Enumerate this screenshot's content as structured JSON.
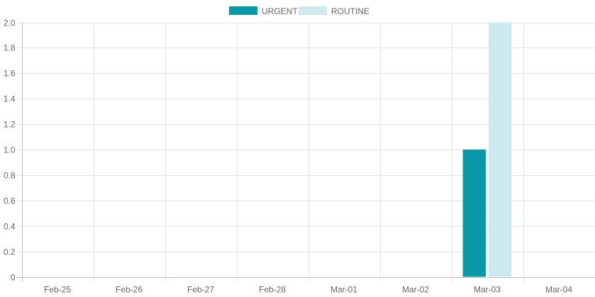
{
  "chart_data": {
    "type": "bar",
    "categories": [
      "Feb-25",
      "Feb-26",
      "Feb-27",
      "Feb-28",
      "Mar-01",
      "Mar-02",
      "Mar-03",
      "Mar-04"
    ],
    "series": [
      {
        "name": "URGENT",
        "values": [
          0,
          0,
          0,
          0,
          0,
          0,
          1,
          0
        ],
        "color": "#0899a9"
      },
      {
        "name": "ROUTINE",
        "values": [
          0,
          0,
          0,
          0,
          0,
          0,
          2,
          0
        ],
        "color": "#cdebef"
      }
    ],
    "ylim": [
      0,
      2.0
    ],
    "yticks": [
      "0",
      "0.2",
      "0.4",
      "0.6",
      "0.8",
      "1.0",
      "1.2",
      "1.4",
      "1.6",
      "1.8",
      "2.0"
    ],
    "grid": true,
    "legend_position": "top-center"
  }
}
